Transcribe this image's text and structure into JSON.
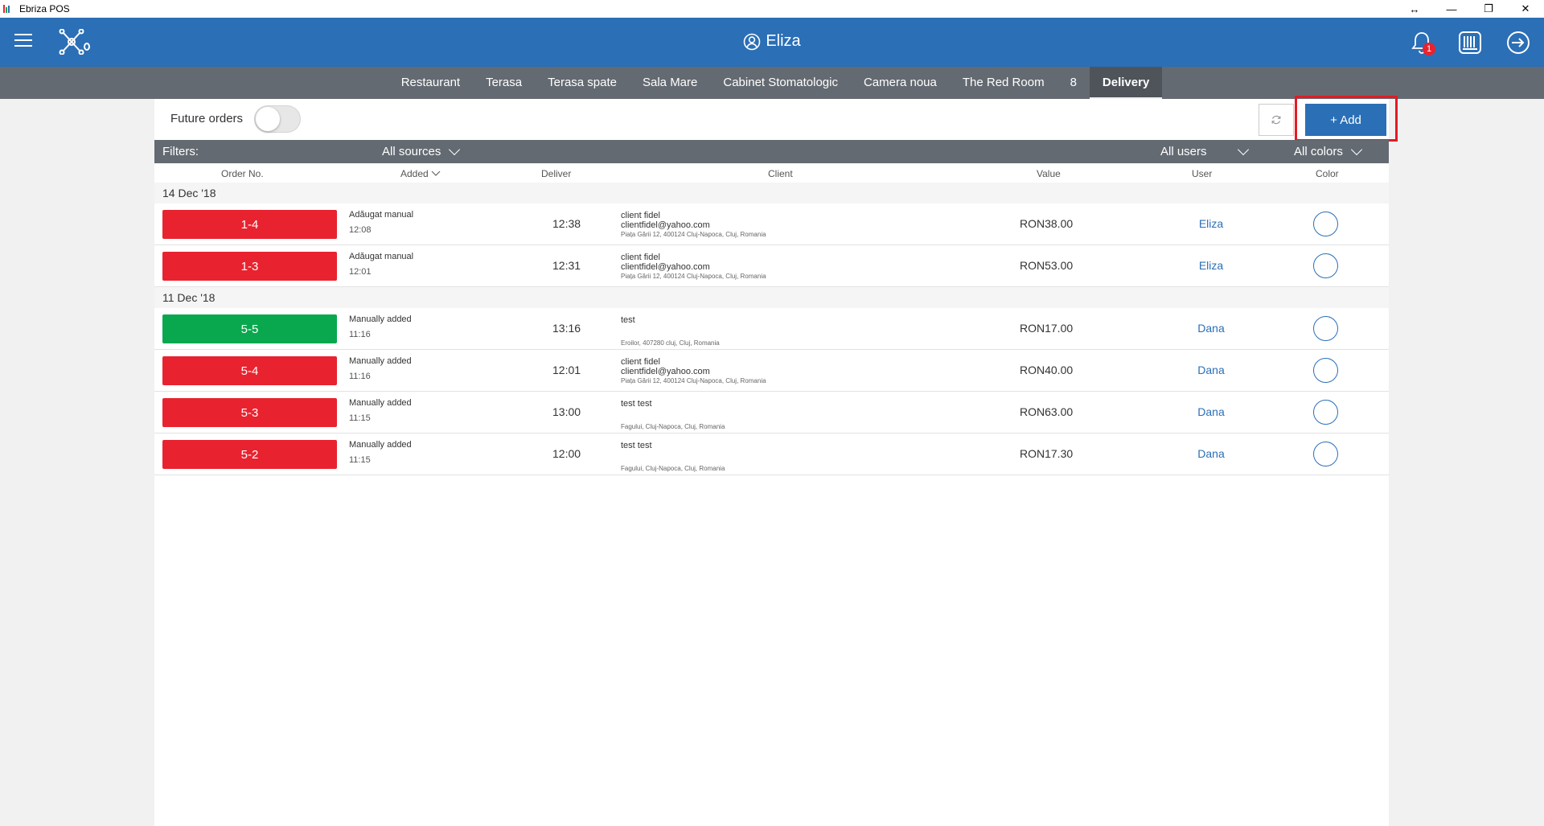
{
  "window": {
    "title": "Ebriza POS",
    "controls": [
      "↔",
      "—",
      "❐",
      "✕"
    ]
  },
  "header": {
    "user": "Eliza",
    "notification_count": "1",
    "icons": [
      "menu-icon",
      "network-icon",
      "user-icon",
      "bell-icon",
      "cash-register-icon",
      "logout-icon"
    ]
  },
  "tabs": [
    {
      "label": "Restaurant",
      "active": false
    },
    {
      "label": "Terasa",
      "active": false
    },
    {
      "label": "Terasa spate",
      "active": false
    },
    {
      "label": "Sala Mare",
      "active": false
    },
    {
      "label": "Cabinet Stomatologic",
      "active": false
    },
    {
      "label": "Camera noua",
      "active": false
    },
    {
      "label": "The Red Room",
      "active": false
    },
    {
      "label": "8",
      "active": false
    },
    {
      "label": "Delivery",
      "active": true
    }
  ],
  "toolbar": {
    "future_orders_label": "Future orders",
    "future_orders_on": false,
    "add_label": "+ Add"
  },
  "filters": {
    "label": "Filters:",
    "sources": "All sources",
    "users": "All users",
    "colors": "All colors"
  },
  "columns": {
    "order_no": "Order No.",
    "added": "Added",
    "deliver": "Deliver",
    "client": "Client",
    "value": "Value",
    "user": "User",
    "color": "Color"
  },
  "colors": {
    "red": "#e8232f",
    "green": "#09a84e",
    "accent": "#2b6fb6"
  },
  "groups": [
    {
      "date": "14 Dec '18",
      "orders": [
        {
          "no": "1-4",
          "status": "red",
          "source": "Adăugat manual",
          "added_time": "12:08",
          "deliver": "12:38",
          "client_name": "client fidel",
          "client_email": "clientfidel@yahoo.com",
          "client_address": "Piața Gării 12, 400124 Cluj-Napoca, Cluj, Romania",
          "value": "RON38.00",
          "user": "Eliza"
        },
        {
          "no": "1-3",
          "status": "red",
          "source": "Adăugat manual",
          "added_time": "12:01",
          "deliver": "12:31",
          "client_name": "client fidel",
          "client_email": "clientfidel@yahoo.com",
          "client_address": "Piața Gării 12, 400124 Cluj-Napoca, Cluj, Romania",
          "value": "RON53.00",
          "user": "Eliza"
        }
      ]
    },
    {
      "date": "11 Dec '18",
      "orders": [
        {
          "no": "5-5",
          "status": "green",
          "source": "Manually added",
          "added_time": "11:16",
          "deliver": "13:16",
          "client_name": "test",
          "client_email": "",
          "client_address": "Eroilor, 407280 cluj, Cluj, Romania",
          "value": "RON17.00",
          "user": "Dana"
        },
        {
          "no": "5-4",
          "status": "red",
          "source": "Manually added",
          "added_time": "11:16",
          "deliver": "12:01",
          "client_name": "client fidel",
          "client_email": "clientfidel@yahoo.com",
          "client_address": "Piața Gării 12, 400124 Cluj-Napoca, Cluj, Romania",
          "value": "RON40.00",
          "user": "Dana"
        },
        {
          "no": "5-3",
          "status": "red",
          "source": "Manually added",
          "added_time": "11:15",
          "deliver": "13:00",
          "client_name": "test test",
          "client_email": "",
          "client_address": "Fagului, Cluj-Napoca, Cluj, Romania",
          "value": "RON63.00",
          "user": "Dana"
        },
        {
          "no": "5-2",
          "status": "red",
          "source": "Manually added",
          "added_time": "11:15",
          "deliver": "12:00",
          "client_name": "test test",
          "client_email": "",
          "client_address": "Fagului, Cluj-Napoca, Cluj, Romania",
          "value": "RON17.30",
          "user": "Dana"
        }
      ]
    }
  ]
}
